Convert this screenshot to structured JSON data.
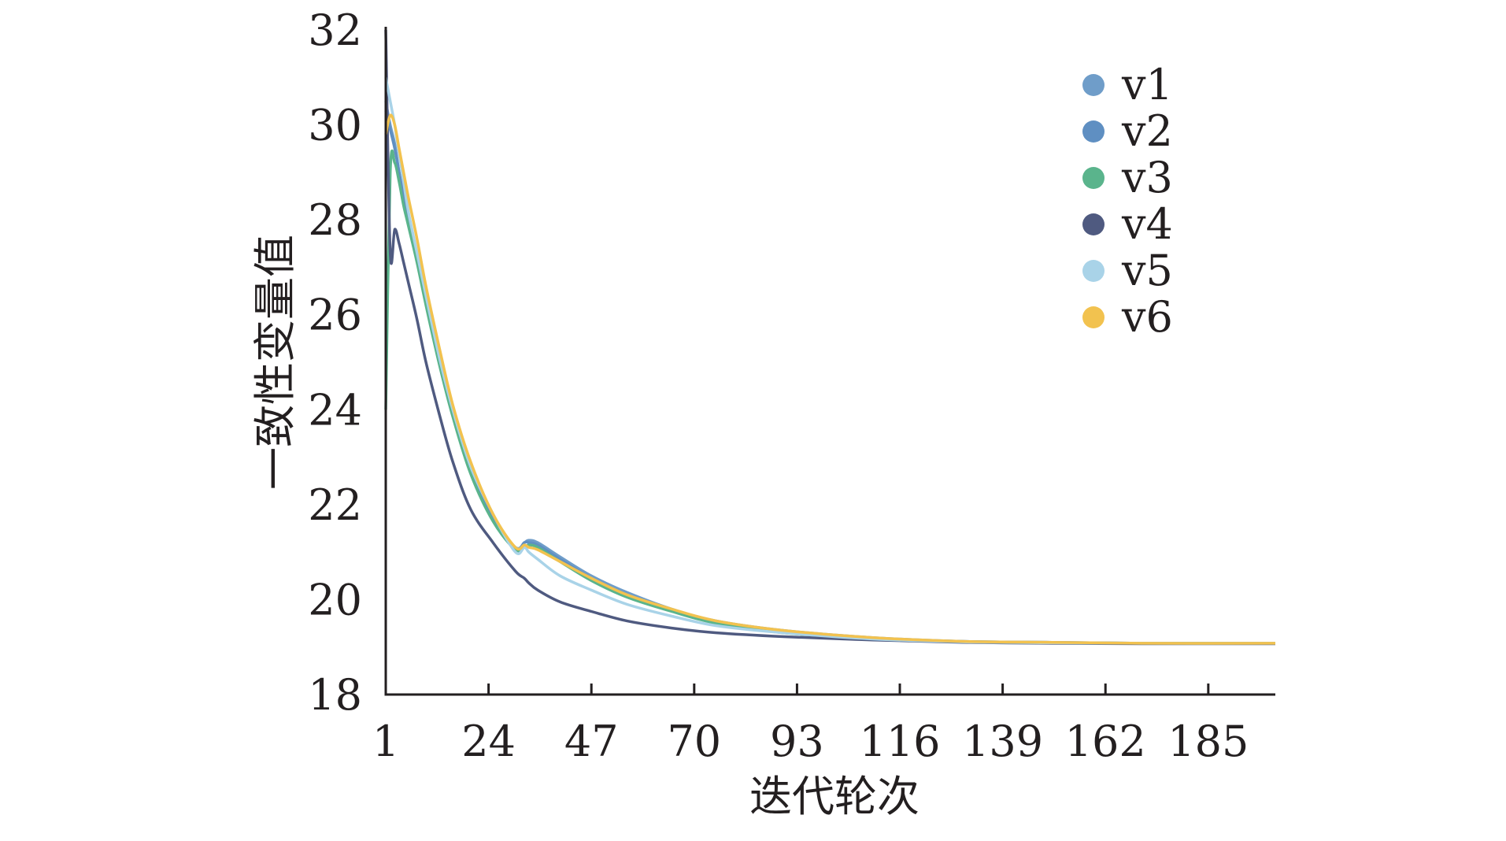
{
  "chart_data": {
    "type": "line",
    "xlabel": "迭代轮次",
    "ylabel": "一致性变量值",
    "x_ticks": [
      1,
      24,
      47,
      70,
      93,
      116,
      139,
      162,
      185
    ],
    "y_ticks": [
      18,
      20,
      22,
      24,
      26,
      28,
      30,
      32
    ],
    "xlim": [
      1,
      200
    ],
    "ylim": [
      18,
      32
    ],
    "grid": false,
    "legend_position": "top-right",
    "x": [
      1,
      2,
      3,
      4,
      5,
      6,
      8,
      10,
      13,
      16,
      20,
      25,
      30,
      32,
      33,
      35,
      40,
      47,
      55,
      65,
      75,
      90,
      110,
      130,
      150,
      170,
      200
    ],
    "series": [
      {
        "name": "v1",
        "color": "#6f9dc9",
        "values": [
          30.5,
          30.0,
          29.6,
          29.0,
          28.5,
          28.0,
          27.2,
          26.3,
          25.0,
          23.9,
          22.7,
          21.7,
          21.1,
          21.2,
          21.25,
          21.2,
          20.9,
          20.5,
          20.15,
          19.8,
          19.55,
          19.35,
          19.2,
          19.12,
          19.1,
          19.08,
          19.08
        ]
      },
      {
        "name": "v2",
        "color": "#5f8fc2",
        "values": [
          30.3,
          29.9,
          29.5,
          29.0,
          28.5,
          28.0,
          27.2,
          26.3,
          25.0,
          23.9,
          22.7,
          21.7,
          21.05,
          21.2,
          21.2,
          21.15,
          20.85,
          20.45,
          20.1,
          19.78,
          19.53,
          19.33,
          19.19,
          19.12,
          19.1,
          19.08,
          19.08
        ]
      },
      {
        "name": "v3",
        "color": "#5ab48c",
        "values": [
          24.0,
          29.0,
          29.2,
          28.8,
          28.3,
          27.9,
          27.1,
          26.2,
          24.95,
          23.85,
          22.65,
          21.65,
          21.05,
          21.1,
          21.15,
          21.1,
          20.8,
          20.4,
          20.05,
          19.75,
          19.5,
          19.3,
          19.18,
          19.11,
          19.09,
          19.08,
          19.08
        ]
      },
      {
        "name": "v4",
        "color": "#4f5a80",
        "values": [
          32.0,
          27.3,
          27.8,
          27.5,
          27.1,
          26.7,
          25.9,
          25.0,
          23.9,
          22.9,
          21.9,
          21.2,
          20.6,
          20.45,
          20.35,
          20.2,
          19.95,
          19.75,
          19.55,
          19.4,
          19.3,
          19.22,
          19.15,
          19.1,
          19.08,
          19.07,
          19.07
        ]
      },
      {
        "name": "v5",
        "color": "#a9d3e8",
        "values": [
          31.0,
          30.5,
          30.0,
          29.4,
          28.8,
          28.2,
          27.3,
          26.4,
          25.1,
          24.0,
          22.8,
          21.8,
          21.0,
          21.1,
          21.0,
          20.85,
          20.5,
          20.2,
          19.9,
          19.65,
          19.45,
          19.3,
          19.17,
          19.11,
          19.09,
          19.08,
          19.08
        ]
      },
      {
        "name": "v6",
        "color": "#f2c24f",
        "values": [
          29.8,
          30.2,
          30.0,
          29.5,
          29.0,
          28.5,
          27.6,
          26.6,
          25.3,
          24.1,
          22.9,
          21.8,
          21.1,
          21.15,
          21.1,
          21.05,
          20.8,
          20.45,
          20.1,
          19.8,
          19.55,
          19.35,
          19.2,
          19.12,
          19.1,
          19.08,
          19.08
        ]
      }
    ]
  }
}
